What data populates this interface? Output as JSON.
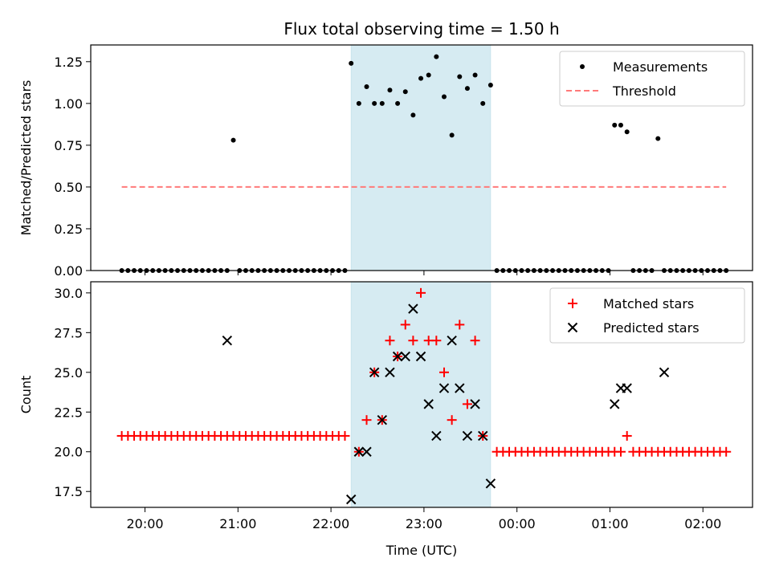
{
  "title": "Flux total observing time = 1.50 h",
  "chart_data": [
    {
      "type": "scatter",
      "panel": "top",
      "ylabel": "Matched/Predicted stars",
      "xlabel": "",
      "xlim": [
        "19:25",
        "02:32"
      ],
      "ylim": [
        0,
        1.35
      ],
      "yticks": [
        0,
        0.25,
        0.5,
        0.75,
        1.0,
        1.25
      ],
      "ytick_labels": [
        "0.00",
        "0.25",
        "0.50",
        "0.75",
        "1.00",
        "1.25"
      ],
      "xticks": [
        "20:00",
        "21:00",
        "22:00",
        "23:00",
        "00:00",
        "01:00",
        "02:00"
      ],
      "show_xtick_labels": false,
      "shaded_span": [
        "22:13",
        "23:43"
      ],
      "series": [
        {
          "name": "Measurements",
          "style": "dot",
          "color": "#000000",
          "x": [
            "19:45",
            "19:49",
            "19:53",
            "19:57",
            "20:01",
            "20:05",
            "20:09",
            "20:13",
            "20:17",
            "20:21",
            "20:25",
            "20:29",
            "20:33",
            "20:37",
            "20:41",
            "20:45",
            "20:49",
            "20:53",
            "20:57",
            "21:01",
            "21:05",
            "21:09",
            "21:13",
            "21:17",
            "21:21",
            "21:25",
            "21:29",
            "21:33",
            "21:37",
            "21:41",
            "21:45",
            "21:49",
            "21:53",
            "21:57",
            "22:01",
            "22:05",
            "22:09",
            "22:13",
            "22:18",
            "22:23",
            "22:28",
            "22:33",
            "22:38",
            "22:43",
            "22:48",
            "22:53",
            "22:58",
            "23:03",
            "23:08",
            "23:13",
            "23:18",
            "23:23",
            "23:28",
            "23:33",
            "23:38",
            "23:43",
            "23:47",
            "23:51",
            "23:55",
            "23:59",
            "00:03",
            "00:07",
            "00:11",
            "00:15",
            "00:19",
            "00:23",
            "00:27",
            "00:31",
            "00:35",
            "00:39",
            "00:43",
            "00:47",
            "00:51",
            "00:55",
            "00:59",
            "01:03",
            "01:07",
            "01:11",
            "01:15",
            "01:19",
            "01:23",
            "01:27",
            "01:31",
            "01:35",
            "01:39",
            "01:43",
            "01:47",
            "01:51",
            "01:55",
            "01:59",
            "02:03",
            "02:07",
            "02:11",
            "02:15"
          ],
          "y": [
            0,
            0,
            0,
            0,
            0,
            0,
            0,
            0,
            0,
            0,
            0,
            0,
            0,
            0,
            0,
            0,
            0,
            0,
            0.78,
            0,
            0,
            0,
            0,
            0,
            0,
            0,
            0,
            0,
            0,
            0,
            0,
            0,
            0,
            0,
            0,
            0,
            0,
            1.24,
            1.0,
            1.1,
            1.0,
            1.0,
            1.08,
            1.0,
            1.07,
            0.93,
            1.15,
            1.17,
            1.28,
            1.04,
            0.81,
            1.16,
            1.09,
            1.17,
            1.0,
            1.11,
            0,
            0,
            0,
            0,
            0,
            0,
            0,
            0,
            0,
            0,
            0,
            0,
            0,
            0,
            0,
            0,
            0,
            0,
            0,
            0.87,
            0.87,
            0.83,
            0,
            0,
            0,
            0,
            0.79,
            0,
            0,
            0,
            0,
            0,
            0,
            0,
            0,
            0,
            0,
            0
          ]
        },
        {
          "name": "Threshold",
          "style": "dashed-line",
          "color": "#ff7a7a",
          "x": [
            "19:45",
            "02:15"
          ],
          "y": [
            0.5,
            0.5
          ]
        }
      ]
    },
    {
      "type": "scatter",
      "panel": "bottom",
      "ylabel": "Count",
      "xlabel": "Time (UTC)",
      "xlim": [
        "19:25",
        "02:32"
      ],
      "ylim": [
        16.5,
        30.7
      ],
      "yticks": [
        17.5,
        20.0,
        22.5,
        25.0,
        27.5,
        30.0
      ],
      "ytick_labels": [
        "17.5",
        "20.0",
        "22.5",
        "25.0",
        "27.5",
        "30.0"
      ],
      "xticks": [
        "20:00",
        "21:00",
        "22:00",
        "23:00",
        "00:00",
        "01:00",
        "02:00"
      ],
      "show_xtick_labels": true,
      "shaded_span": [
        "22:13",
        "23:43"
      ],
      "series": [
        {
          "name": "Matched stars",
          "style": "plus",
          "color": "#ff0000",
          "x": [
            "19:45",
            "19:49",
            "19:53",
            "19:57",
            "20:01",
            "20:05",
            "20:09",
            "20:13",
            "20:17",
            "20:21",
            "20:25",
            "20:29",
            "20:33",
            "20:37",
            "20:41",
            "20:45",
            "20:49",
            "20:53",
            "20:57",
            "21:01",
            "21:05",
            "21:09",
            "21:13",
            "21:17",
            "21:21",
            "21:25",
            "21:29",
            "21:33",
            "21:37",
            "21:41",
            "21:45",
            "21:49",
            "21:53",
            "21:57",
            "22:01",
            "22:05",
            "22:09",
            "22:18",
            "22:23",
            "22:28",
            "22:33",
            "22:38",
            "22:43",
            "22:48",
            "22:53",
            "22:58",
            "23:03",
            "23:08",
            "23:13",
            "23:18",
            "23:23",
            "23:28",
            "23:33",
            "23:38",
            "23:47",
            "23:51",
            "23:55",
            "23:59",
            "00:03",
            "00:07",
            "00:11",
            "00:15",
            "00:19",
            "00:23",
            "00:27",
            "00:31",
            "00:35",
            "00:39",
            "00:43",
            "00:47",
            "00:51",
            "00:55",
            "00:59",
            "01:03",
            "01:07",
            "01:11",
            "01:15",
            "01:19",
            "01:23",
            "01:27",
            "01:31",
            "01:35",
            "01:39",
            "01:43",
            "01:47",
            "01:51",
            "01:55",
            "01:59",
            "02:03",
            "02:07",
            "02:11",
            "02:15"
          ],
          "y": [
            21,
            21,
            21,
            21,
            21,
            21,
            21,
            21,
            21,
            21,
            21,
            21,
            21,
            21,
            21,
            21,
            21,
            21,
            21,
            21,
            21,
            21,
            21,
            21,
            21,
            21,
            21,
            21,
            21,
            21,
            21,
            21,
            21,
            21,
            21,
            21,
            21,
            20,
            22,
            25,
            22,
            27,
            26,
            28,
            27,
            30,
            27,
            27,
            25,
            22,
            28,
            23,
            27,
            21,
            20,
            20,
            20,
            20,
            20,
            20,
            20,
            20,
            20,
            20,
            20,
            20,
            20,
            20,
            20,
            20,
            20,
            20,
            20,
            20,
            20,
            21,
            20,
            20,
            20,
            20,
            20,
            20,
            20,
            20,
            20,
            20,
            20,
            20,
            20,
            20,
            20,
            20
          ]
        },
        {
          "name": "Predicted stars",
          "style": "x",
          "color": "#000000",
          "x": [
            "20:53",
            "22:13",
            "22:18",
            "22:23",
            "22:28",
            "22:33",
            "22:38",
            "22:43",
            "22:48",
            "22:53",
            "22:58",
            "23:03",
            "23:08",
            "23:13",
            "23:18",
            "23:23",
            "23:28",
            "23:33",
            "23:38",
            "23:43",
            "01:03",
            "01:07",
            "01:11",
            "01:35"
          ],
          "y": [
            27,
            17,
            20,
            20,
            25,
            22,
            25,
            26,
            26,
            29,
            26,
            23,
            21,
            24,
            27,
            24,
            21,
            23,
            21,
            18,
            23,
            24,
            24,
            25
          ]
        }
      ]
    }
  ]
}
